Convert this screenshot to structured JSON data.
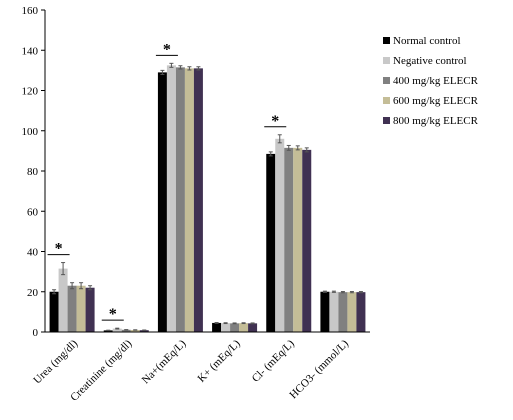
{
  "chart_data": {
    "type": "bar",
    "title": "",
    "xlabel": "",
    "ylabel": "",
    "ylim": [
      0,
      160
    ],
    "y_ticks": [
      0,
      20,
      40,
      60,
      80,
      100,
      120,
      140,
      160
    ],
    "grid": false,
    "legend_position": "right",
    "categories": [
      "Urea (mg/dl)",
      "Creatinine (mg/dl)",
      "Na+(mEq/L)",
      "K+ (mEq/L)",
      "Cl- (mEq/L)",
      "HCO3- (mmol/L)"
    ],
    "series": [
      {
        "name": "Normal control",
        "color": "#000000",
        "values": [
          20,
          0.8,
          129,
          4.5,
          88.5,
          20
        ],
        "errors": [
          1,
          0.1,
          1,
          0.2,
          1,
          0.3
        ]
      },
      {
        "name": "Negative control",
        "color": "#c8c8c8",
        "values": [
          31.5,
          1.7,
          132.5,
          4.4,
          96,
          20
        ],
        "errors": [
          3,
          0.2,
          1,
          0.2,
          2,
          0.3
        ]
      },
      {
        "name": "400 mg/kg ELECR",
        "color": "#808080",
        "values": [
          23,
          1.1,
          131.5,
          4.3,
          91.5,
          19.8
        ],
        "errors": [
          1.5,
          0.1,
          0.8,
          0.2,
          1.2,
          0.3
        ]
      },
      {
        "name": "600 mg/kg ELECR",
        "color": "#c4bd97",
        "values": [
          23,
          1.0,
          131,
          4.4,
          91.5,
          19.8
        ],
        "errors": [
          1.5,
          0.1,
          0.8,
          0.2,
          1.0,
          0.3
        ]
      },
      {
        "name": "800 mg/kg ELECR",
        "color": "#403152",
        "values": [
          22,
          0.9,
          131,
          4.3,
          90.5,
          19.8
        ],
        "errors": [
          1,
          0.1,
          0.8,
          0.2,
          1.0,
          0.3
        ]
      }
    ],
    "annotations": [
      {
        "text": "*",
        "category": "Urea (mg/dl)"
      },
      {
        "text": "*",
        "category": "Creatinine (mg/dl)"
      },
      {
        "text": "*",
        "category": "Na+(mEq/L)"
      },
      {
        "text": "*",
        "category": "Cl- (mEq/L)"
      }
    ]
  }
}
